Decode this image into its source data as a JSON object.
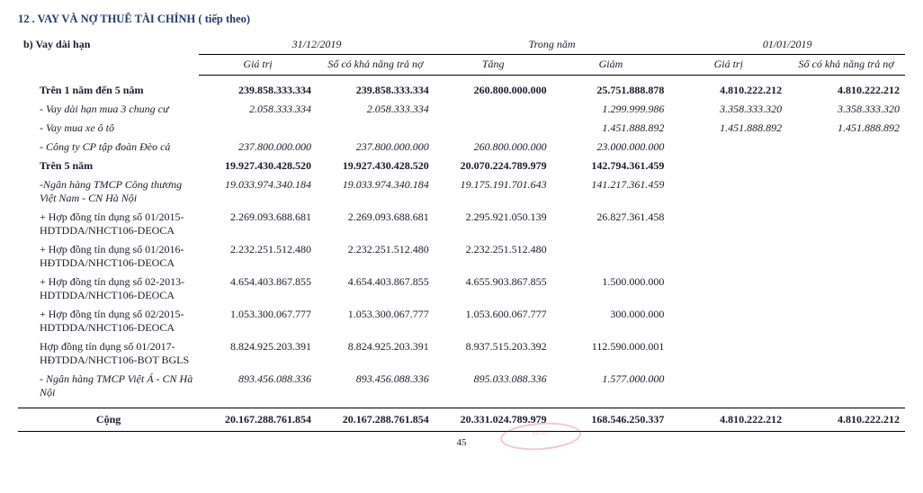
{
  "section": {
    "number": "12",
    "title": "VAY VÀ NỢ THUÊ TÀI CHÍNH ( tiếp theo)",
    "sub": "b) Vay dài hạn"
  },
  "headers": {
    "g1": "31/12/2019",
    "g2": "Trong năm",
    "g3": "01/01/2019",
    "c1": "Giá trị",
    "c2": "Số có khả năng trả nợ",
    "c3": "Tăng",
    "c4": "Giảm",
    "c5": "Giá trị",
    "c6": "Số có khả năng trả nợ"
  },
  "rows": {
    "r1": {
      "label": "Trên 1 năm đến 5 năm",
      "v1": "239.858.333.334",
      "v2": "239.858.333.334",
      "v3": "260.800.000.000",
      "v4": "25.751.888.878",
      "v5": "4.810.222.212",
      "v6": "4.810.222.212"
    },
    "r2": {
      "label": "- Vay dài hạn mua 3 chung cư",
      "v1": "2.058.333.334",
      "v2": "2.058.333.334",
      "v3": "",
      "v4": "1.299.999.986",
      "v5": "3.358.333.320",
      "v6": "3.358.333.320"
    },
    "r3": {
      "label": "- Vay mua xe ô tô",
      "v1": "",
      "v2": "",
      "v3": "",
      "v4": "1.451.888.892",
      "v5": "1.451.888.892",
      "v6": "1.451.888.892"
    },
    "r4": {
      "label": "- Công ty CP tập đoàn Đèo cả",
      "v1": "237.800.000.000",
      "v2": "237.800.000.000",
      "v3": "260.800.000.000",
      "v4": "23.000.000.000",
      "v5": "",
      "v6": ""
    },
    "r5": {
      "label": "Trên 5 năm",
      "v1": "19.927.430.428.520",
      "v2": "19.927.430.428.520",
      "v3": "20.070.224.789.979",
      "v4": "142.794.361.459",
      "v5": "",
      "v6": ""
    },
    "r6": {
      "label": "-Ngân hàng TMCP Công thương Việt Nam - CN Hà Nội",
      "v1": "19.033.974.340.184",
      "v2": "19.033.974.340.184",
      "v3": "19.175.191.701.643",
      "v4": "141.217.361.459",
      "v5": "",
      "v6": ""
    },
    "r7": {
      "label": "+ Hợp đồng tín dụng số 01/2015-HDTDDA/NHCT106-DEOCA",
      "v1": "2.269.093.688.681",
      "v2": "2.269.093.688.681",
      "v3": "2.295.921.050.139",
      "v4": "26.827.361.458",
      "v5": "",
      "v6": ""
    },
    "r8": {
      "label": "+ Hợp đồng tín dụng số 01/2016-HĐTDDA/NHCT106-DEOCA",
      "v1": "2.232.251.512.480",
      "v2": "2.232.251.512.480",
      "v3": "2.232.251.512.480",
      "v4": "",
      "v5": "",
      "v6": ""
    },
    "r9": {
      "label": "+ Hợp đồng tín dụng số 02-2013-HDTDDA/NHCT106-DEOCA",
      "v1": "4.654.403.867.855",
      "v2": "4.654.403.867.855",
      "v3": "4.655.903.867.855",
      "v4": "1.500.000.000",
      "v5": "",
      "v6": ""
    },
    "r10": {
      "label": "+ Hợp đồng tín dụng số 02/2015-HDTDDA/NHCT106-DEOCA",
      "v1": "1.053.300.067.777",
      "v2": "1.053.300.067.777",
      "v3": "1.053.600.067.777",
      "v4": "300.000.000",
      "v5": "",
      "v6": ""
    },
    "r11": {
      "label": "Hợp đồng tín dụng số 01/2017-HĐTDDA/NHCT106-BOT BGLS",
      "v1": "8.824.925.203.391",
      "v2": "8.824.925.203.391",
      "v3": "8.937.515.203.392",
      "v4": "112.590.000.001",
      "v5": "",
      "v6": ""
    },
    "r12": {
      "label": "- Ngân hàng TMCP Việt Á - CN Hà Nội",
      "v1": "893.456.088.336",
      "v2": "893.456.088.336",
      "v3": "895.033.088.336",
      "v4": "1.577.000.000",
      "v5": "",
      "v6": ""
    }
  },
  "total": {
    "label": "Cộng",
    "v1": "20.167.288.761.854",
    "v2": "20.167.288.761.854",
    "v3": "20.331.024.789.979",
    "v4": "168.546.250.337",
    "v5": "4.810.222.212",
    "v6": "4.810.222.212"
  },
  "page": "45",
  "stamp": "MINH"
}
